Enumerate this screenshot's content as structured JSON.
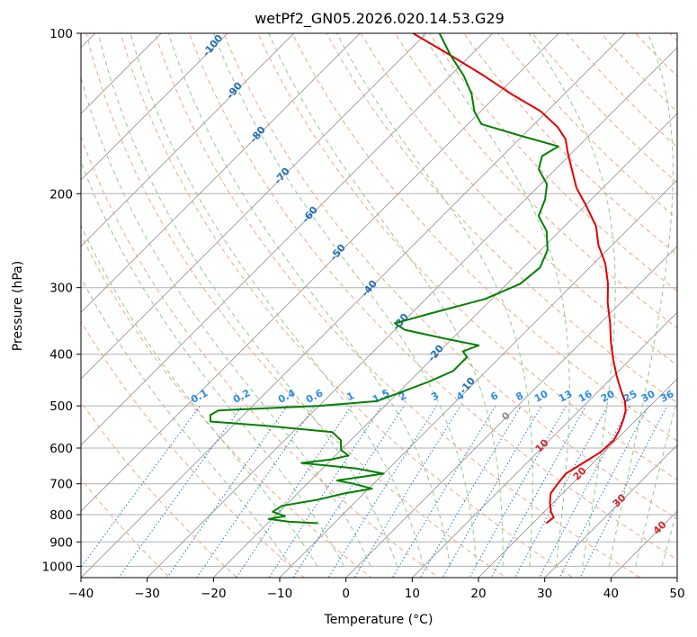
{
  "chart_data": {
    "type": "line",
    "title": "wetPf2_GN05.2026.020.14.53.G29",
    "xlabel": "Temperature (°C)",
    "ylabel": "Pressure (hPa)",
    "xlim": [
      -40,
      50
    ],
    "ylim": [
      1050,
      100
    ],
    "y_scale": "log",
    "x_ticks": [
      -40,
      -30,
      -20,
      -10,
      0,
      10,
      20,
      30,
      40,
      50
    ],
    "x_tick_labels": [
      "−40",
      "−30",
      "−20",
      "−10",
      "0",
      "10",
      "20",
      "30",
      "40",
      "50"
    ],
    "y_ticks": [
      100,
      200,
      300,
      400,
      500,
      600,
      700,
      800,
      900,
      1000
    ],
    "y_tick_labels": [
      "100",
      "200",
      "300",
      "400",
      "500",
      "600",
      "700",
      "800",
      "900",
      "1000"
    ],
    "grid": true,
    "series": [
      {
        "role": "temperature",
        "color": "#e00000",
        "points": [
          {
            "p": 830,
            "t": 22.0
          },
          {
            "p": 810,
            "t": 22.3
          },
          {
            "p": 790,
            "t": 21.0
          },
          {
            "p": 760,
            "t": 19.5
          },
          {
            "p": 730,
            "t": 18.2
          },
          {
            "p": 700,
            "t": 17.8
          },
          {
            "p": 670,
            "t": 17.5
          },
          {
            "p": 640,
            "t": 18.5
          },
          {
            "p": 610,
            "t": 19.5
          },
          {
            "p": 580,
            "t": 19.7
          },
          {
            "p": 555,
            "t": 19.0
          },
          {
            "p": 530,
            "t": 18.0
          },
          {
            "p": 510,
            "t": 17.0
          },
          {
            "p": 490,
            "t": 15.5
          },
          {
            "p": 465,
            "t": 13.0
          },
          {
            "p": 440,
            "t": 10.5
          },
          {
            "p": 410,
            "t": 7.5
          },
          {
            "p": 380,
            "t": 4.5
          },
          {
            "p": 350,
            "t": 1.5
          },
          {
            "p": 320,
            "t": -2.0
          },
          {
            "p": 295,
            "t": -4.8
          },
          {
            "p": 270,
            "t": -8.3
          },
          {
            "p": 250,
            "t": -12.0
          },
          {
            "p": 230,
            "t": -15.3
          },
          {
            "p": 210,
            "t": -20.0
          },
          {
            "p": 195,
            "t": -24.0
          },
          {
            "p": 180,
            "t": -27.5
          },
          {
            "p": 168,
            "t": -30.5
          },
          {
            "p": 158,
            "t": -33.0
          },
          {
            "p": 150,
            "t": -36.0
          },
          {
            "p": 140,
            "t": -41.0
          },
          {
            "p": 130,
            "t": -48.0
          },
          {
            "p": 120,
            "t": -55.0
          },
          {
            "p": 110,
            "t": -63.0
          },
          {
            "p": 100,
            "t": -72.0
          }
        ]
      },
      {
        "role": "dewpoint",
        "color": "#008000",
        "points": [
          {
            "p": 830,
            "t": -12.5
          },
          {
            "p": 825,
            "t": -17.0
          },
          {
            "p": 815,
            "t": -20.5
          },
          {
            "p": 805,
            "t": -18.5
          },
          {
            "p": 790,
            "t": -21.0
          },
          {
            "p": 770,
            "t": -20.5
          },
          {
            "p": 750,
            "t": -16.0
          },
          {
            "p": 730,
            "t": -13.0
          },
          {
            "p": 715,
            "t": -9.5
          },
          {
            "p": 700,
            "t": -13.0
          },
          {
            "p": 690,
            "t": -16.0
          },
          {
            "p": 680,
            "t": -13.0
          },
          {
            "p": 670,
            "t": -10.0
          },
          {
            "p": 655,
            "t": -15.0
          },
          {
            "p": 640,
            "t": -24.0
          },
          {
            "p": 630,
            "t": -20.0
          },
          {
            "p": 620,
            "t": -18.0
          },
          {
            "p": 605,
            "t": -20.0
          },
          {
            "p": 580,
            "t": -21.5
          },
          {
            "p": 560,
            "t": -24.0
          },
          {
            "p": 545,
            "t": -35.0
          },
          {
            "p": 535,
            "t": -44.0
          },
          {
            "p": 520,
            "t": -45.0
          },
          {
            "p": 510,
            "t": -44.5
          },
          {
            "p": 500,
            "t": -30.0
          },
          {
            "p": 490,
            "t": -22.0
          },
          {
            "p": 470,
            "t": -19.5
          },
          {
            "p": 450,
            "t": -17.0
          },
          {
            "p": 430,
            "t": -15.0
          },
          {
            "p": 405,
            "t": -15.0
          },
          {
            "p": 395,
            "t": -16.5
          },
          {
            "p": 385,
            "t": -15.0
          },
          {
            "p": 375,
            "t": -20.5
          },
          {
            "p": 360,
            "t": -28.5
          },
          {
            "p": 350,
            "t": -31.0
          },
          {
            "p": 335,
            "t": -27.0
          },
          {
            "p": 315,
            "t": -21.0
          },
          {
            "p": 295,
            "t": -18.0
          },
          {
            "p": 275,
            "t": -17.5
          },
          {
            "p": 255,
            "t": -19.0
          },
          {
            "p": 235,
            "t": -22.0
          },
          {
            "p": 220,
            "t": -25.5
          },
          {
            "p": 205,
            "t": -27.0
          },
          {
            "p": 192,
            "t": -29.0
          },
          {
            "p": 180,
            "t": -32.5
          },
          {
            "p": 170,
            "t": -34.0
          },
          {
            "p": 163,
            "t": -33.0
          },
          {
            "p": 156,
            "t": -40.0
          },
          {
            "p": 148,
            "t": -48.0
          },
          {
            "p": 140,
            "t": -51.0
          },
          {
            "p": 130,
            "t": -54.0
          },
          {
            "p": 120,
            "t": -58.0
          },
          {
            "p": 110,
            "t": -63.0
          },
          {
            "p": 100,
            "t": -68.0
          }
        ]
      }
    ],
    "dry_adiabat_labels": [
      "-100",
      "-90",
      "-80",
      "-70",
      "-60",
      "-50",
      "-40",
      "-30",
      "-20",
      "-10"
    ],
    "mixing_ratio_labels": [
      "0.1",
      "0.2",
      "0.4",
      "0.6",
      "1",
      "1.5",
      "2",
      "3",
      "4",
      "6",
      "8",
      "10",
      "13",
      "16",
      "20",
      "25",
      "30",
      "36"
    ],
    "moist_adiabat_labels": [
      "0",
      "10",
      "20",
      "30",
      "40"
    ],
    "colors": {
      "dry_adiabat": "#f4a582",
      "moist_adiabat": "#92c98f",
      "mixing_ratio": "#1f78d1",
      "isotherm": "#808080",
      "isobar": "#b0b0b0",
      "dry_label": "#1f6fb4",
      "moist_label": "#d62728",
      "mixing_label": "#2b8ce6",
      "zero_label": "#8c8c8c"
    }
  }
}
